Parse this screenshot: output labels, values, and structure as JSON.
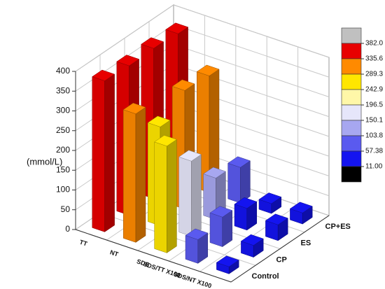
{
  "chart_data": {
    "type": "bar3d",
    "ylabel": "(mmol/L)",
    "categories": [
      "TT",
      "NT",
      "SDS",
      "SDS/TT X100",
      "SDS/NT X100"
    ],
    "series": [
      {
        "name": "Control",
        "values": [
          382,
          325,
          270,
          60,
          18
        ]
      },
      {
        "name": "CP",
        "values": [
          378,
          250,
          190,
          75,
          30
        ]
      },
      {
        "name": "ES",
        "values": [
          380,
          300,
          105,
          55,
          40
        ]
      },
      {
        "name": "CP+ES",
        "values": [
          375,
          295,
          90,
          25,
          28
        ]
      }
    ],
    "zlim": [
      0,
      400
    ],
    "zticks": [
      0,
      50,
      100,
      150,
      200,
      250,
      300,
      350,
      400
    ],
    "grid": true,
    "colorbar": {
      "ticks": [
        {
          "value": 382,
          "label": "382.0"
        },
        335.6,
        289.3,
        242.9,
        196.5,
        150.1,
        103.8,
        57.38,
        {
          "value": 11,
          "label": "11.00"
        }
      ],
      "colors": [
        "#c0c0c0",
        "#e80000",
        "#ff8a00",
        "#ffe600",
        "#fff7a8",
        "#e6e6fa",
        "#a7a7f0",
        "#5a5aef",
        "#1414f0",
        "#000000"
      ]
    }
  }
}
